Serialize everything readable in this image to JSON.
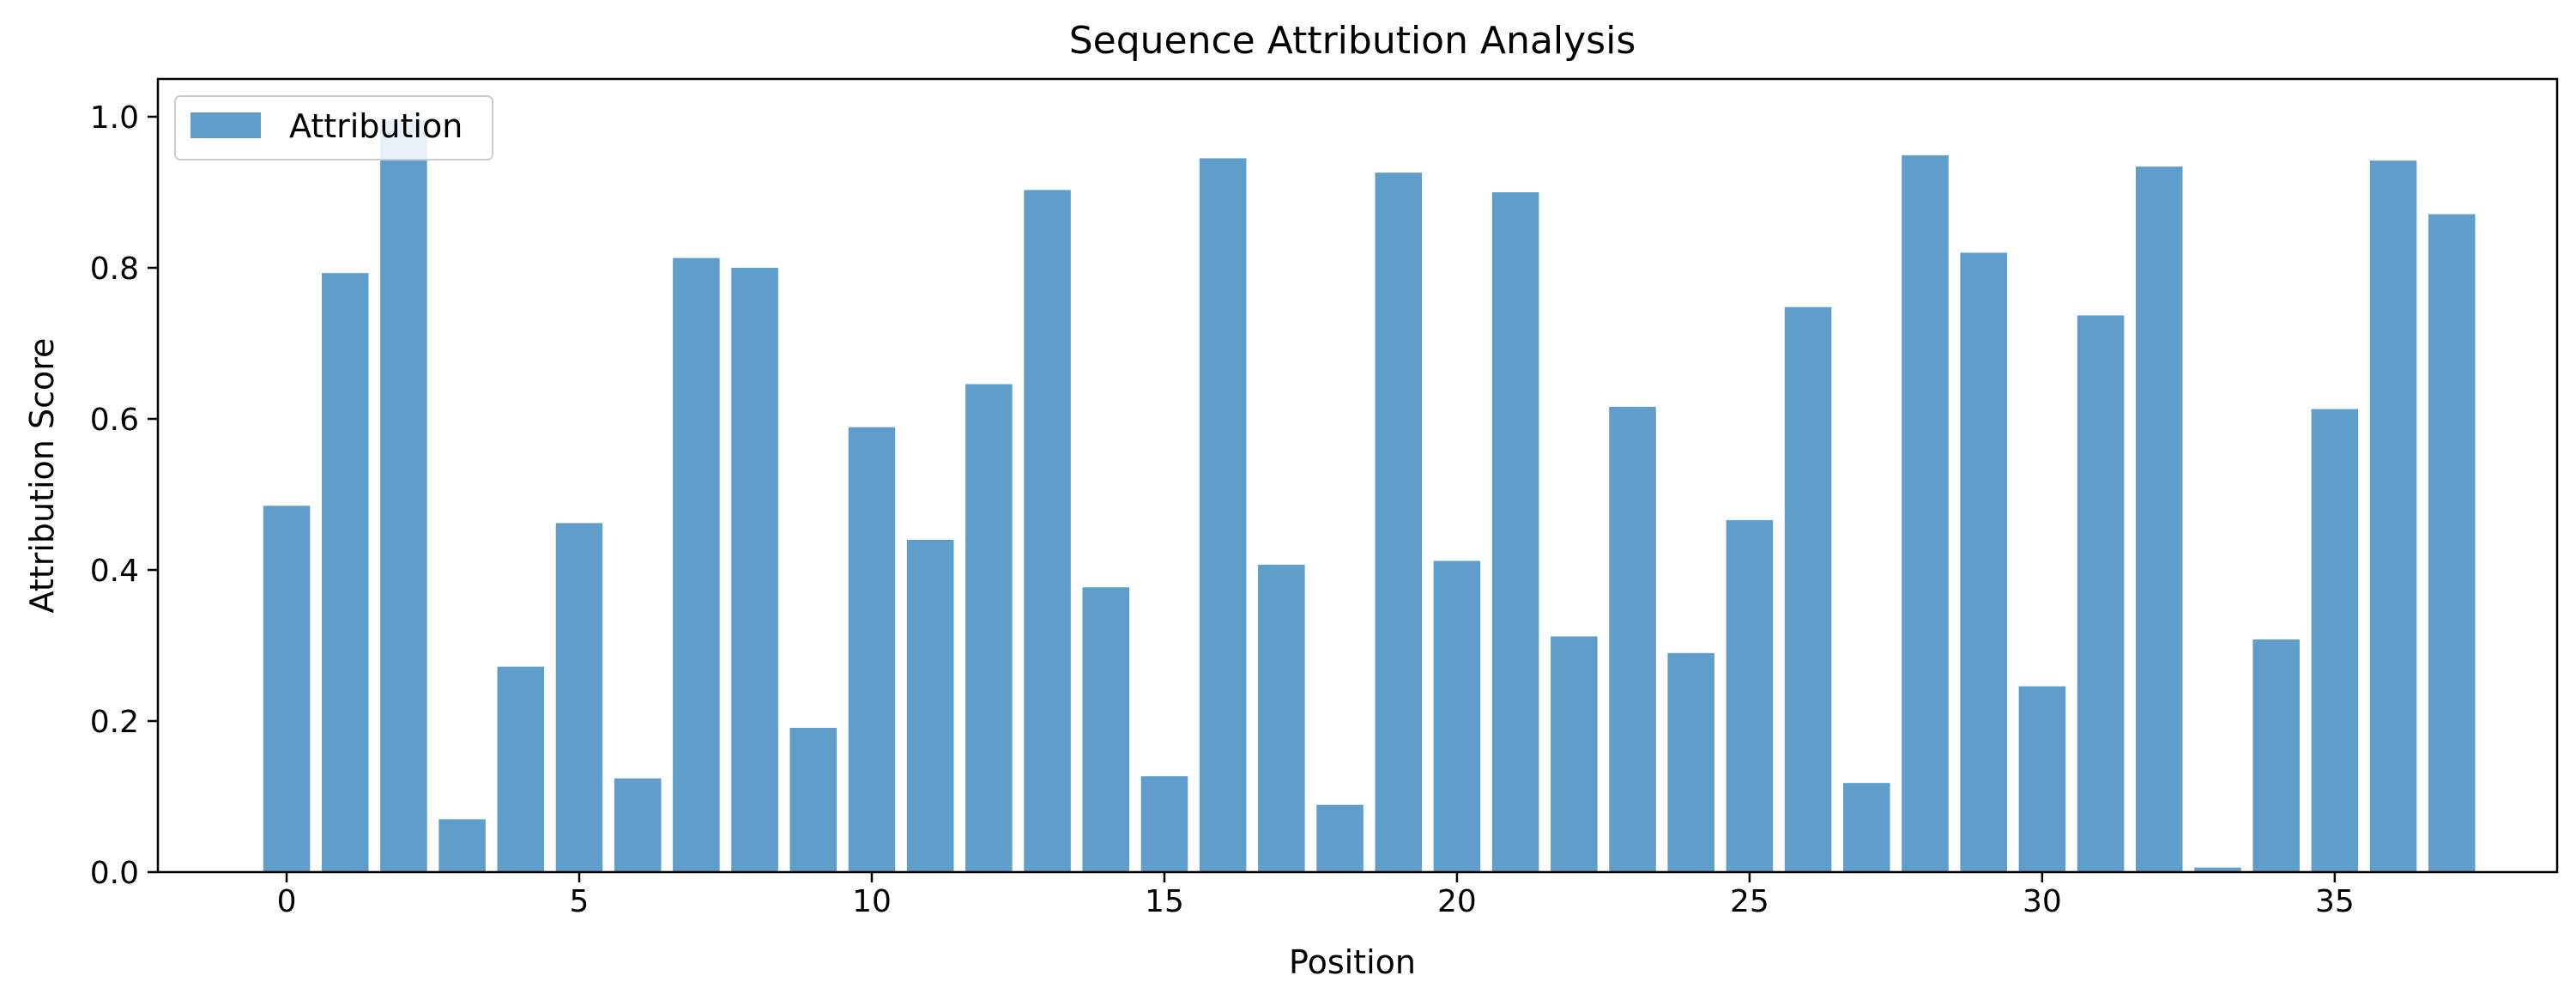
{
  "chart_data": {
    "type": "bar",
    "title": "Sequence Attribution Analysis",
    "xlabel": "Position",
    "ylabel": "Attribution Score",
    "xlim": [
      -2.2,
      38.8
    ],
    "ylim": [
      0,
      1.05
    ],
    "x_ticks": [
      0,
      5,
      10,
      15,
      20,
      25,
      30,
      35
    ],
    "y_ticks": [
      0.0,
      0.2,
      0.4,
      0.6,
      0.8,
      1.0
    ],
    "y_tick_labels": [
      "0.0",
      "0.2",
      "0.4",
      "0.6",
      "0.8",
      "1.0"
    ],
    "grid": false,
    "legend": {
      "placement": "top-left",
      "entries": [
        "Attribution"
      ]
    },
    "series": [
      {
        "name": "Attribution",
        "color": "#5f9ecb",
        "x": [
          0,
          1,
          2,
          3,
          4,
          5,
          6,
          7,
          8,
          9,
          10,
          11,
          12,
          13,
          14,
          15,
          16,
          17,
          18,
          19,
          20,
          21,
          22,
          23,
          24,
          25,
          26,
          27,
          28,
          29,
          30,
          31,
          32,
          33,
          34,
          35,
          36,
          37
        ],
        "values": [
          0.485,
          0.793,
          0.995,
          0.07,
          0.272,
          0.462,
          0.124,
          0.813,
          0.8,
          0.191,
          0.589,
          0.44,
          0.646,
          0.903,
          0.377,
          0.127,
          0.945,
          0.407,
          0.089,
          0.926,
          0.412,
          0.9,
          0.312,
          0.616,
          0.29,
          0.466,
          0.748,
          0.118,
          0.949,
          0.82,
          0.246,
          0.737,
          0.934,
          0.006,
          0.308,
          0.613,
          0.942,
          0.871
        ]
      }
    ]
  }
}
